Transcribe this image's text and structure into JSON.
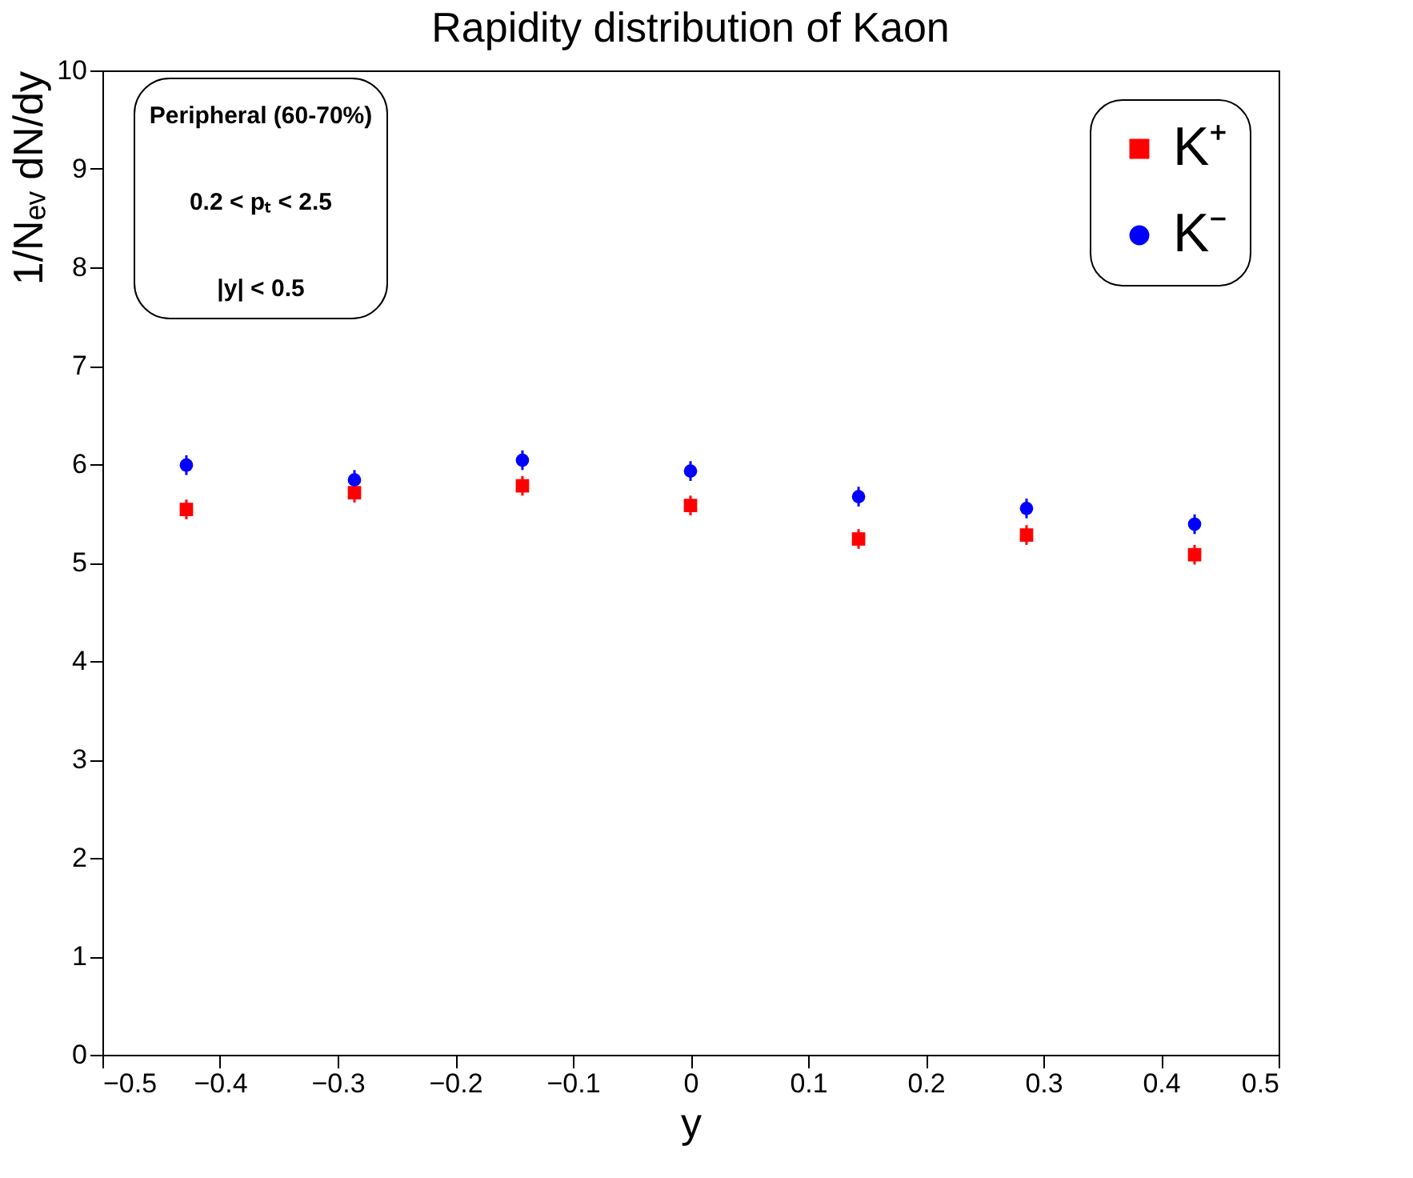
{
  "chart_data": {
    "type": "scatter",
    "title": "Rapidity distribution of Kaon",
    "xlabel": "y",
    "ylabel": "1/Nₑᵥ dN/dy",
    "x": [
      -0.4286,
      -0.2857,
      -0.1429,
      0,
      0.1429,
      0.2857,
      0.4286
    ],
    "series": [
      {
        "name": "K⁺",
        "color": "#ff0000",
        "marker": "square",
        "values": [
          5.54,
          5.71,
          5.78,
          5.58,
          5.24,
          5.28,
          5.08
        ],
        "errors": [
          0.1,
          0.1,
          0.1,
          0.1,
          0.1,
          0.1,
          0.1
        ]
      },
      {
        "name": "K⁻",
        "color": "#0000ff",
        "marker": "circle",
        "values": [
          5.99,
          5.84,
          6.04,
          5.93,
          5.67,
          5.55,
          5.39
        ],
        "errors": [
          0.1,
          0.1,
          0.1,
          0.1,
          0.1,
          0.1,
          0.1
        ]
      }
    ],
    "annotations": [
      "Peripheral (60-70%)",
      "0.2 < pₜ < 2.5",
      "|y| < 0.5"
    ],
    "xlim": [
      -0.5,
      0.5
    ],
    "xticks": [
      -0.5,
      -0.4,
      -0.3,
      -0.2,
      -0.1,
      0,
      0.1,
      0.2,
      0.3,
      0.4,
      0.5
    ],
    "ylim": [
      0,
      10
    ],
    "yticks": [
      0,
      1,
      2,
      3,
      4,
      5,
      6,
      7,
      8,
      9,
      10
    ],
    "grid": false,
    "legend": "top right"
  }
}
